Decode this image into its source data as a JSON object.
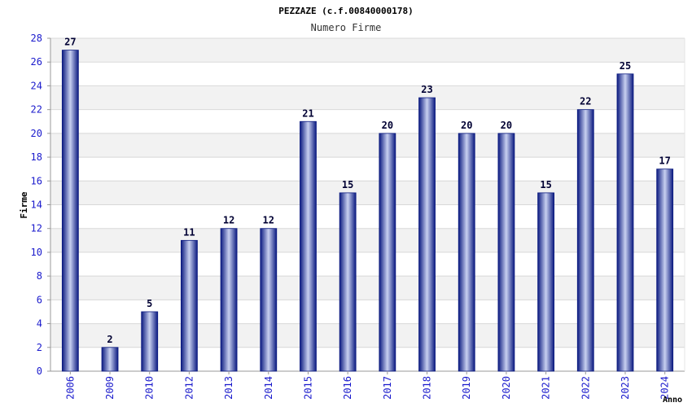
{
  "chart_data": {
    "type": "bar",
    "title": "PEZZAZE (c.f.00840000178)",
    "subtitle": "Numero Firme",
    "xlabel": "Anno",
    "ylabel": "Firme",
    "categories": [
      "2006",
      "2009",
      "2010",
      "2012",
      "2013",
      "2014",
      "2015",
      "2016",
      "2017",
      "2018",
      "2019",
      "2020",
      "2021",
      "2022",
      "2023",
      "2024"
    ],
    "values": [
      27,
      2,
      5,
      11,
      12,
      12,
      21,
      15,
      20,
      23,
      20,
      20,
      15,
      22,
      25,
      17
    ],
    "ylim": [
      0,
      28
    ],
    "ytick_step": 2,
    "grid": true,
    "colors": {
      "bar_dark": "#0b1a80",
      "bar_light": "#c8d0f0",
      "band": "#f2f2f2",
      "grid": "#d8d8d8",
      "axis": "#999999",
      "tick_text": "#1a1acc"
    }
  }
}
